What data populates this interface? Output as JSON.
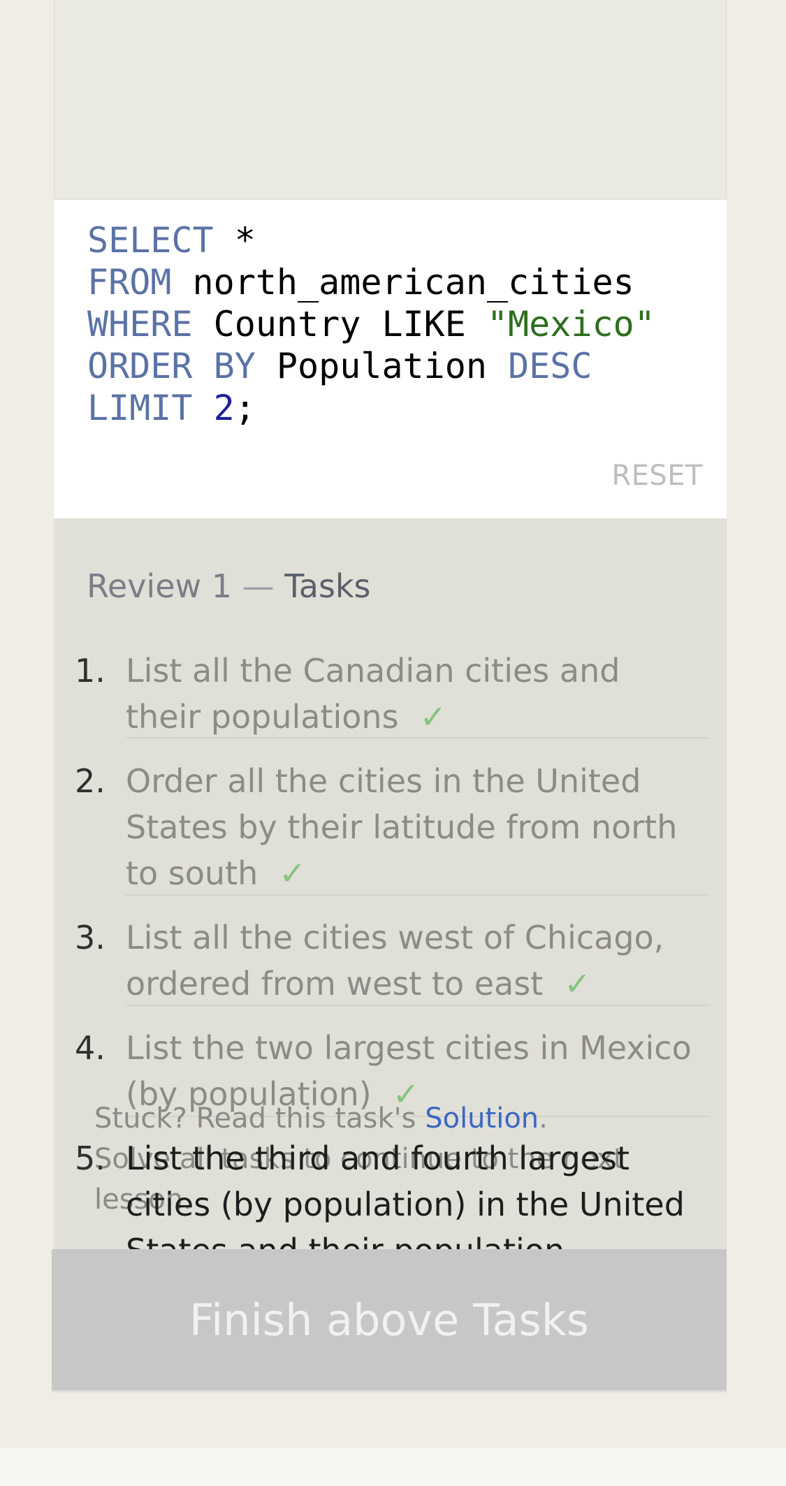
{
  "editor": {
    "lines": [
      [
        {
          "t": "SELECT",
          "c": "kw"
        },
        {
          "t": " *",
          "c": ""
        }
      ],
      [
        {
          "t": "FROM",
          "c": "kw"
        },
        {
          "t": " north_american_cities",
          "c": ""
        }
      ],
      [
        {
          "t": "WHERE",
          "c": "kw"
        },
        {
          "t": " Country LIKE ",
          "c": ""
        },
        {
          "t": "\"Mexico\"",
          "c": "str"
        }
      ],
      [
        {
          "t": "ORDER BY",
          "c": "kw"
        },
        {
          "t": " Population ",
          "c": ""
        },
        {
          "t": "DESC",
          "c": "kw"
        }
      ],
      [
        {
          "t": "LIMIT",
          "c": "kw"
        },
        {
          "t": " ",
          "c": ""
        },
        {
          "t": "2",
          "c": "num"
        },
        {
          "t": ";",
          "c": ""
        }
      ]
    ],
    "reset_label": "RESET"
  },
  "tasks": {
    "title_prefix": "Review 1",
    "title_dash": "—",
    "title_word": "Tasks",
    "items": [
      {
        "num": "1.",
        "text": "List all the Canadian cities and their populations",
        "done": true
      },
      {
        "num": "2.",
        "text": "Order all the cities in the United States by their latitude from north to south",
        "done": true
      },
      {
        "num": "3.",
        "text": "List all the cities west of Chicago, ordered from west to east",
        "done": true
      },
      {
        "num": "4.",
        "text": "List the two largest cities in Mexico (by population)",
        "done": true
      },
      {
        "num": "5.",
        "text": "List the third and fourth largest cities (by population) in the United States and their population",
        "done": false
      }
    ],
    "check_glyph": "✓",
    "hint_prefix": "Stuck? Read this task's ",
    "hint_link": "Solution",
    "hint_suffix": ".",
    "hint_line2": "Solve all tasks to continue to the next lesson."
  },
  "finish_button_label": "Finish above Tasks",
  "colors": {
    "keyword": "#5b72a6",
    "string": "#2e6e1e",
    "number": "#1f1f9a",
    "check": "#86c47f",
    "link": "#3b66c4",
    "finish_button_bg": "#c7c7c7"
  }
}
